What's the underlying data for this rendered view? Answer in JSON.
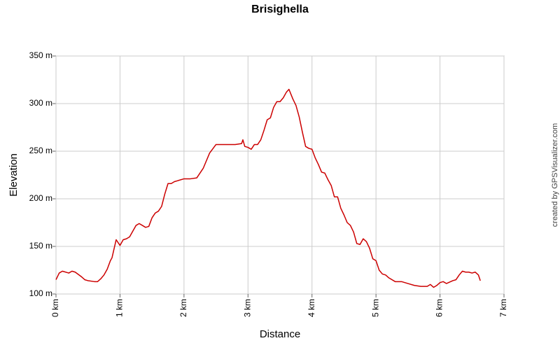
{
  "chart_data": {
    "type": "line",
    "title": "Brisighella",
    "xlabel": "Distance",
    "ylabel": "Elevation",
    "credit": "created by GPSVisualizer.com",
    "color": "#cc0000",
    "grid": true,
    "xlim": [
      0,
      7
    ],
    "ylim": [
      100,
      350
    ],
    "xticks": [
      {
        "value": 0,
        "label": "0 km"
      },
      {
        "value": 1,
        "label": "1 km"
      },
      {
        "value": 2,
        "label": "2 km"
      },
      {
        "value": 3,
        "label": "3 km"
      },
      {
        "value": 4,
        "label": "4 km"
      },
      {
        "value": 5,
        "label": "5 km"
      },
      {
        "value": 6,
        "label": "6 km"
      },
      {
        "value": 7,
        "label": "7 km"
      }
    ],
    "yticks": [
      {
        "value": 100,
        "label": "100 m"
      },
      {
        "value": 150,
        "label": "150 m"
      },
      {
        "value": 200,
        "label": "200 m"
      },
      {
        "value": 250,
        "label": "250 m"
      },
      {
        "value": 300,
        "label": "300 m"
      },
      {
        "value": 350,
        "label": "350 m"
      }
    ],
    "x": [
      0,
      0.05,
      0.1,
      0.2,
      0.25,
      0.3,
      0.4,
      0.45,
      0.5,
      0.6,
      0.65,
      0.7,
      0.75,
      0.8,
      0.85,
      0.875,
      0.94,
      1.0,
      1.05,
      1.1,
      1.15,
      1.2,
      1.25,
      1.3,
      1.35,
      1.4,
      1.45,
      1.5,
      1.55,
      1.6,
      1.65,
      1.7,
      1.75,
      1.8,
      1.85,
      1.9,
      2.0,
      2.1,
      2.2,
      2.3,
      2.4,
      2.5,
      2.6,
      2.7,
      2.8,
      2.9,
      2.92,
      2.95,
      3.0,
      3.05,
      3.1,
      3.15,
      3.2,
      3.25,
      3.3,
      3.35,
      3.4,
      3.45,
      3.5,
      3.55,
      3.6,
      3.64,
      3.7,
      3.75,
      3.8,
      3.85,
      3.9,
      3.95,
      4.0,
      4.05,
      4.1,
      4.15,
      4.2,
      4.25,
      4.3,
      4.35,
      4.4,
      4.45,
      4.5,
      4.55,
      4.6,
      4.65,
      4.7,
      4.75,
      4.8,
      4.85,
      4.9,
      4.95,
      5.0,
      5.05,
      5.1,
      5.15,
      5.2,
      5.3,
      5.4,
      5.5,
      5.6,
      5.7,
      5.8,
      5.85,
      5.9,
      5.95,
      6.0,
      6.05,
      6.1,
      6.2,
      6.25,
      6.3,
      6.35,
      6.4,
      6.45,
      6.5,
      6.55,
      6.6,
      6.63
    ],
    "values": [
      115,
      122,
      124,
      122,
      124,
      123,
      118,
      115,
      114,
      113,
      113,
      116,
      120,
      126,
      135,
      138,
      157,
      151,
      157,
      158,
      160,
      166,
      172,
      174,
      172,
      170,
      171,
      180,
      185,
      187,
      192,
      205,
      216,
      216,
      218,
      219,
      221,
      221,
      222,
      232,
      248,
      257,
      257,
      257,
      257,
      258,
      262,
      255,
      254,
      252,
      257,
      257,
      262,
      272,
      283,
      285,
      296,
      302,
      302,
      306,
      312,
      315,
      305,
      298,
      286,
      270,
      255,
      253,
      252,
      243,
      236,
      228,
      227,
      220,
      214,
      202,
      202,
      190,
      183,
      175,
      172,
      165,
      153,
      152,
      158,
      155,
      148,
      137,
      135,
      125,
      121,
      120,
      117,
      113,
      113,
      111,
      109,
      108,
      108,
      110,
      107,
      109,
      112,
      113,
      111,
      114,
      115,
      120,
      124,
      123,
      123,
      122,
      123,
      120,
      114
    ]
  }
}
